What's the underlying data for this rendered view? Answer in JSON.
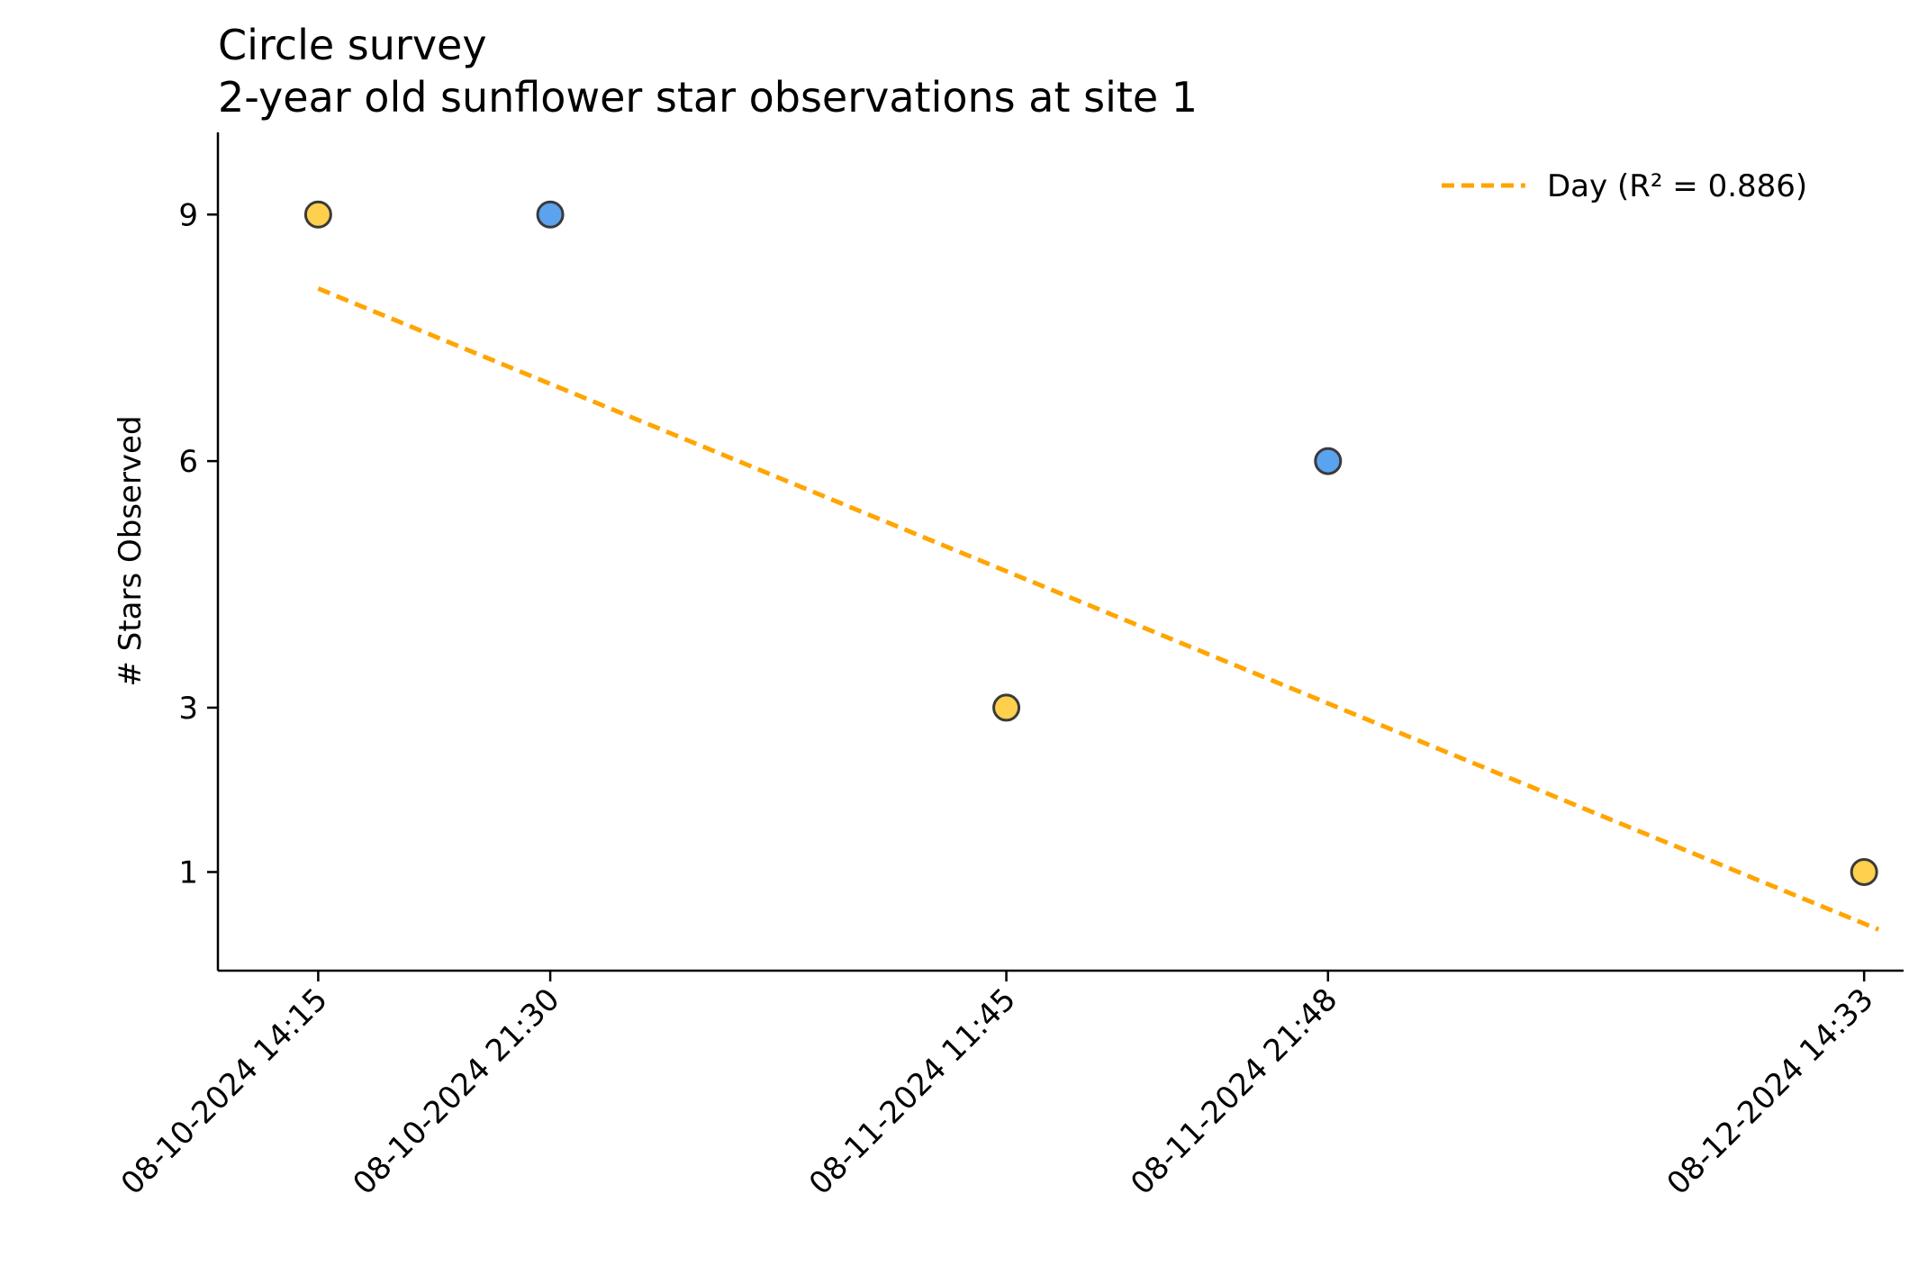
{
  "chart_data": {
    "type": "scatter",
    "title": "Circle survey",
    "subtitle": "2-year old sunflower star observations at site 1",
    "xlabel": "",
    "ylabel": "# Stars Observed",
    "x_tick_labels": [
      "08-10-2024 14:15",
      "08-10-2024 21:30",
      "08-11-2024 11:45",
      "08-11-2024 21:48",
      "08-12-2024 14:33"
    ],
    "y_ticks": [
      1,
      3,
      6,
      9
    ],
    "ylim": [
      -0.2,
      10.0
    ],
    "xlim": [
      "08-10-2024 11:07",
      "08-12-2024 15:47"
    ],
    "grid": false,
    "legend_position": "top-right",
    "points": [
      {
        "x": "08-10-2024 14:15",
        "y": 9,
        "group": "day"
      },
      {
        "x": "08-10-2024 21:30",
        "y": 9,
        "group": "night"
      },
      {
        "x": "08-11-2024 11:45",
        "y": 3,
        "group": "day"
      },
      {
        "x": "08-11-2024 21:48",
        "y": 6,
        "group": "night"
      },
      {
        "x": "08-12-2024 14:33",
        "y": 1,
        "group": "day"
      }
    ],
    "trend_line": {
      "label": "Day (R² = 0.886)",
      "start": {
        "x": "08-10-2024 14:15",
        "y": 8.1
      },
      "end": {
        "x": "08-12-2024 15:00",
        "y": 0.3
      },
      "color": "#FFA500",
      "style": "dashed"
    },
    "colors": {
      "day": "#FFD04D",
      "night": "#5BA3EE",
      "marker_edge": "#3a3a3a",
      "axis": "#000000"
    }
  }
}
